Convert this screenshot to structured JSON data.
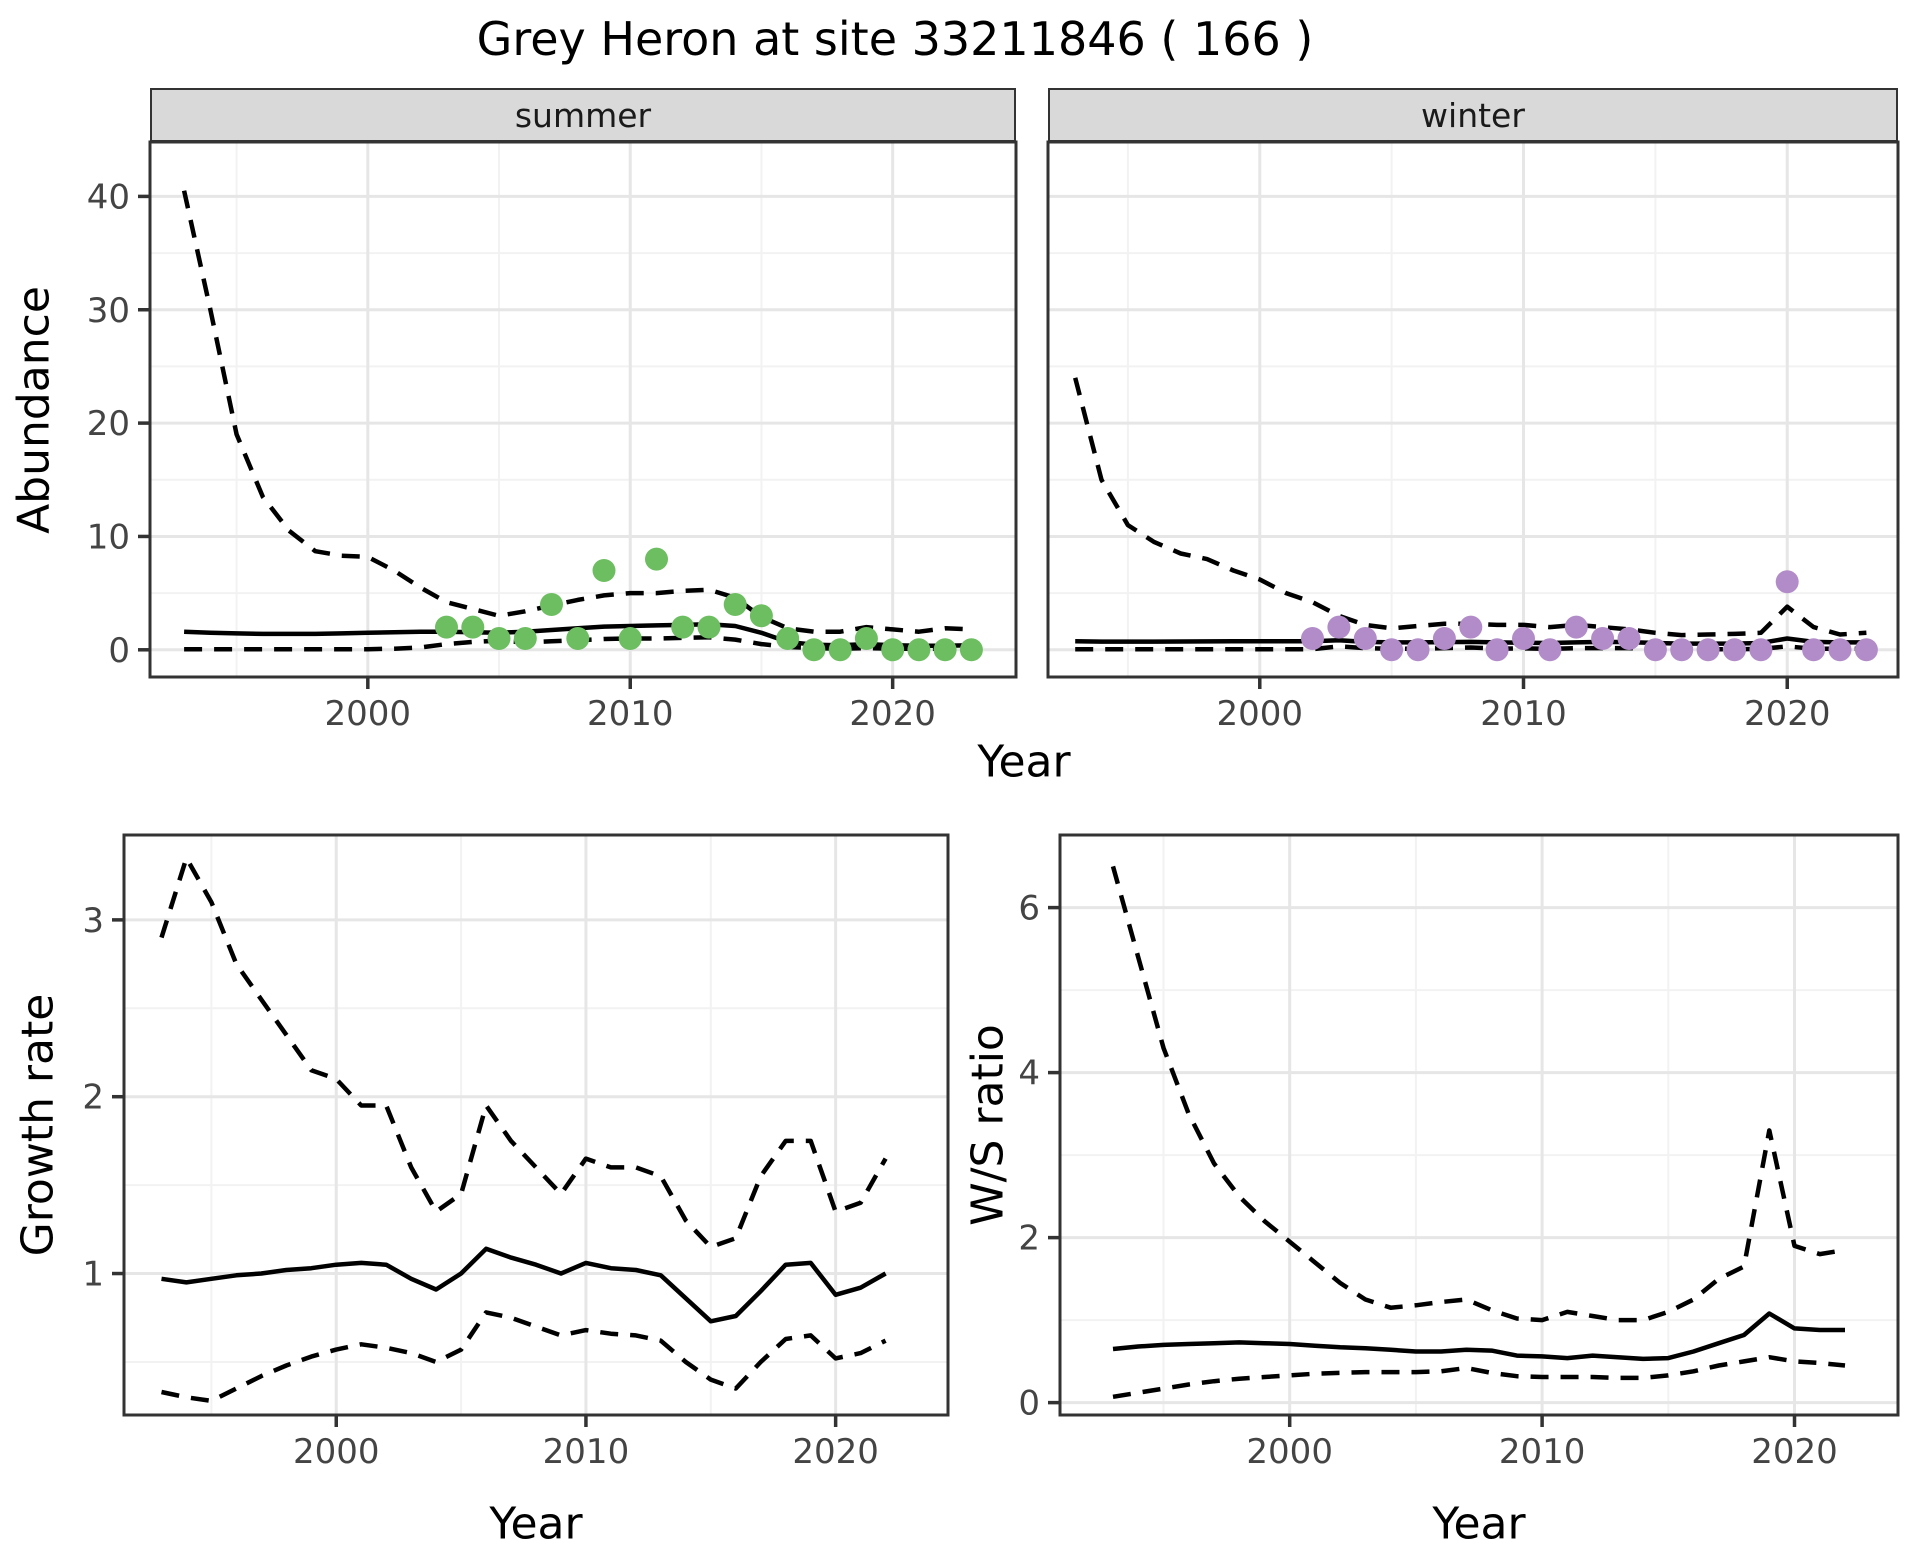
{
  "title": "Grey Heron at site 33211846 ( 166 )",
  "top_row": {
    "facets": [
      {
        "label": "summer"
      },
      {
        "label": "winter"
      }
    ],
    "y_title": "Abundance",
    "x_title": "Year"
  },
  "bottom_row": {
    "left_y_title": "Growth rate",
    "left_x_title": "Year",
    "right_y_title": "W/S ratio",
    "right_x_title": "Year"
  },
  "colors": {
    "summer_points": "#6CBE60",
    "winter_points": "#B28CC8",
    "line": "#000000",
    "grid_major": "#E6E6E6",
    "grid_minor": "#F2F2F2",
    "strip_bg": "#D9D9D9",
    "panel_border": "#333333",
    "tick_text": "#444444"
  },
  "chart_data": [
    {
      "id": "abundance-summer",
      "type": "line",
      "facet": "summer",
      "xlabel": "Year",
      "ylabel": "Abundance",
      "xlim": [
        1991.7,
        2024.7
      ],
      "ylim": [
        -2.4,
        44.8
      ],
      "x_ticks": [
        2000,
        2010,
        2020
      ],
      "y_ticks": [
        0,
        10,
        20,
        30,
        40
      ],
      "x_minor": [
        1995,
        2005,
        2015
      ],
      "y_minor": [
        5,
        15,
        25,
        35
      ],
      "grid": true,
      "years": [
        1993,
        1994,
        1995,
        1996,
        1997,
        1998,
        1999,
        2000,
        2001,
        2002,
        2003,
        2004,
        2005,
        2006,
        2007,
        2008,
        2009,
        2010,
        2011,
        2012,
        2013,
        2014,
        2015,
        2016,
        2017,
        2018,
        2019,
        2020,
        2021,
        2022,
        2023
      ],
      "series": [
        {
          "name": "fit",
          "style": "solid",
          "values": [
            1.6,
            1.5,
            1.45,
            1.4,
            1.4,
            1.4,
            1.45,
            1.5,
            1.55,
            1.6,
            1.6,
            1.55,
            1.5,
            1.6,
            1.75,
            1.9,
            2.05,
            2.1,
            2.15,
            2.2,
            2.25,
            2.1,
            1.5,
            0.7,
            0.45,
            0.4,
            0.5,
            0.4,
            0.35,
            0.35,
            0.4
          ]
        },
        {
          "name": "upper_ci",
          "style": "dashed",
          "values": [
            40.5,
            30,
            19,
            13.5,
            10.5,
            8.7,
            8.3,
            8.2,
            7.0,
            5.5,
            4.2,
            3.6,
            3.0,
            3.4,
            3.9,
            4.4,
            4.8,
            5.0,
            5.0,
            5.2,
            5.3,
            4.6,
            2.9,
            1.9,
            1.6,
            1.6,
            2.0,
            1.8,
            1.6,
            1.9,
            1.8
          ]
        },
        {
          "name": "lower_ci",
          "style": "dashed",
          "values": [
            0.05,
            0.05,
            0.05,
            0.05,
            0.05,
            0.05,
            0.05,
            0.05,
            0.1,
            0.2,
            0.5,
            0.7,
            0.8,
            0.65,
            0.75,
            0.85,
            0.95,
            1.0,
            1.0,
            1.05,
            1.1,
            0.9,
            0.5,
            0.25,
            0.15,
            0.1,
            0.15,
            0.1,
            0.1,
            0.1,
            0.1
          ]
        }
      ],
      "points": {
        "color_key": "summer_points",
        "years": [
          2003,
          2004,
          2005,
          2006,
          2007,
          2008,
          2009,
          2010,
          2011,
          2012,
          2013,
          2014,
          2015,
          2016,
          2017,
          2018,
          2019,
          2020,
          2021,
          2022,
          2023
        ],
        "values": [
          2,
          2,
          1,
          1,
          4,
          1,
          7,
          1,
          8,
          2,
          2,
          4,
          3,
          1,
          0,
          0,
          1,
          0,
          0,
          0,
          0
        ]
      }
    },
    {
      "id": "abundance-winter",
      "type": "line",
      "facet": "winter",
      "xlabel": "Year",
      "ylabel": "Abundance",
      "xlim": [
        1991.97,
        2024.2
      ],
      "ylim": [
        -2.4,
        44.8
      ],
      "x_ticks": [
        2000,
        2010,
        2020
      ],
      "y_ticks": [
        0,
        10,
        20,
        30,
        40
      ],
      "x_minor": [
        1995,
        2005,
        2015
      ],
      "y_minor": [
        5,
        15,
        25,
        35
      ],
      "grid": true,
      "years": [
        1993,
        1994,
        1995,
        1996,
        1997,
        1998,
        1999,
        2000,
        2001,
        2002,
        2003,
        2004,
        2005,
        2006,
        2007,
        2008,
        2009,
        2010,
        2011,
        2012,
        2013,
        2014,
        2015,
        2016,
        2017,
        2018,
        2019,
        2020,
        2021,
        2022,
        2023
      ],
      "series": [
        {
          "name": "fit",
          "style": "solid",
          "values": [
            0.75,
            0.72,
            0.72,
            0.72,
            0.73,
            0.74,
            0.75,
            0.76,
            0.76,
            0.75,
            0.85,
            0.7,
            0.65,
            0.65,
            0.68,
            0.7,
            0.65,
            0.63,
            0.6,
            0.65,
            0.7,
            0.68,
            0.6,
            0.55,
            0.55,
            0.55,
            0.6,
            1.0,
            0.7,
            0.65,
            0.65
          ]
        },
        {
          "name": "upper_ci",
          "style": "dashed",
          "values": [
            24,
            15,
            11,
            9.5,
            8.5,
            8,
            7,
            6.2,
            5,
            4.2,
            3.0,
            2.2,
            1.9,
            2.1,
            2.3,
            2.3,
            2.2,
            2.2,
            2.0,
            2.2,
            2.0,
            1.8,
            1.5,
            1.3,
            1.35,
            1.4,
            1.5,
            3.8,
            2.0,
            1.35,
            1.5
          ]
        },
        {
          "name": "lower_ci",
          "style": "dashed",
          "values": [
            0.05,
            0.05,
            0.05,
            0.05,
            0.05,
            0.05,
            0.05,
            0.05,
            0.05,
            0.05,
            0.3,
            0.15,
            0.1,
            0.1,
            0.15,
            0.2,
            0.1,
            0.12,
            0.08,
            0.15,
            0.15,
            0.15,
            0.05,
            0.05,
            0.05,
            0.05,
            0.08,
            0.3,
            0.1,
            0.1,
            0.1
          ]
        }
      ],
      "points": {
        "color_key": "winter_points",
        "years": [
          2002,
          2003,
          2004,
          2005,
          2006,
          2007,
          2008,
          2009,
          2010,
          2011,
          2012,
          2013,
          2014,
          2015,
          2016,
          2017,
          2018,
          2019,
          2020,
          2021,
          2022,
          2023
        ],
        "values": [
          1,
          2,
          1,
          0,
          0,
          1,
          2,
          0,
          1,
          0,
          2,
          1,
          1,
          0,
          0,
          0,
          0,
          0,
          6,
          0,
          0,
          0
        ]
      }
    },
    {
      "id": "growth-rate",
      "type": "line",
      "facet": "",
      "xlabel": "Year",
      "ylabel": "Growth rate",
      "xlim": [
        1991.5,
        2024.5
      ],
      "ylim": [
        0.2,
        3.48
      ],
      "x_ticks": [
        2000,
        2010,
        2020
      ],
      "y_ticks": [
        1,
        2,
        3
      ],
      "x_minor": [
        1995,
        2005,
        2015
      ],
      "y_minor": [
        0.5,
        1.5,
        2.5
      ],
      "grid": true,
      "years": [
        1993,
        1994,
        1995,
        1996,
        1997,
        1998,
        1999,
        2000,
        2001,
        2002,
        2003,
        2004,
        2005,
        2006,
        2007,
        2008,
        2009,
        2010,
        2011,
        2012,
        2013,
        2014,
        2015,
        2016,
        2017,
        2018,
        2019,
        2020,
        2021,
        2022
      ],
      "series": [
        {
          "name": "fit",
          "style": "solid",
          "values": [
            0.97,
            0.95,
            0.97,
            0.99,
            1.0,
            1.02,
            1.03,
            1.05,
            1.06,
            1.05,
            0.97,
            0.91,
            1.0,
            1.14,
            1.09,
            1.05,
            1.0,
            1.06,
            1.03,
            1.02,
            0.99,
            0.86,
            0.73,
            0.76,
            0.9,
            1.05,
            1.06,
            0.88,
            0.92,
            1.0
          ]
        },
        {
          "name": "upper_ci",
          "style": "dashed",
          "values": [
            2.9,
            3.35,
            3.1,
            2.75,
            2.55,
            2.35,
            2.15,
            2.1,
            1.95,
            1.95,
            1.6,
            1.35,
            1.45,
            1.95,
            1.75,
            1.6,
            1.45,
            1.65,
            1.6,
            1.6,
            1.55,
            1.3,
            1.15,
            1.2,
            1.55,
            1.75,
            1.75,
            1.35,
            1.4,
            1.65
          ]
        },
        {
          "name": "lower_ci",
          "style": "dashed",
          "values": [
            0.33,
            0.3,
            0.28,
            0.35,
            0.42,
            0.48,
            0.53,
            0.57,
            0.6,
            0.58,
            0.55,
            0.5,
            0.57,
            0.78,
            0.75,
            0.7,
            0.65,
            0.68,
            0.66,
            0.65,
            0.62,
            0.5,
            0.4,
            0.35,
            0.5,
            0.63,
            0.65,
            0.52,
            0.55,
            0.62
          ]
        }
      ],
      "points": null
    },
    {
      "id": "ws-ratio",
      "type": "line",
      "facet": "",
      "xlabel": "Year",
      "ylabel": "W/S ratio",
      "xlim": [
        1990.9,
        2024.1
      ],
      "ylim": [
        -0.15,
        6.88
      ],
      "x_ticks": [
        2000,
        2010,
        2020
      ],
      "y_ticks": [
        0,
        2,
        4,
        6
      ],
      "x_minor": [
        1995,
        2005,
        2015
      ],
      "y_minor": [
        1,
        3,
        5
      ],
      "grid": true,
      "years": [
        1993,
        1994,
        1995,
        1996,
        1997,
        1998,
        1999,
        2000,
        2001,
        2002,
        2003,
        2004,
        2005,
        2006,
        2007,
        2008,
        2009,
        2010,
        2011,
        2012,
        2013,
        2014,
        2015,
        2016,
        2017,
        2018,
        2019,
        2020,
        2021,
        2022
      ],
      "series": [
        {
          "name": "fit",
          "style": "solid",
          "values": [
            0.65,
            0.68,
            0.7,
            0.71,
            0.72,
            0.73,
            0.72,
            0.71,
            0.69,
            0.67,
            0.66,
            0.64,
            0.62,
            0.62,
            0.64,
            0.63,
            0.57,
            0.56,
            0.54,
            0.57,
            0.55,
            0.53,
            0.54,
            0.62,
            0.72,
            0.82,
            1.08,
            0.9,
            0.88,
            0.88
          ]
        },
        {
          "name": "upper_ci",
          "style": "dashed",
          "values": [
            6.5,
            5.4,
            4.3,
            3.5,
            2.9,
            2.5,
            2.2,
            1.95,
            1.7,
            1.45,
            1.25,
            1.15,
            1.18,
            1.22,
            1.25,
            1.12,
            1.02,
            1.0,
            1.1,
            1.05,
            1.0,
            1.0,
            1.1,
            1.25,
            1.5,
            1.65,
            3.3,
            1.9,
            1.8,
            1.85
          ]
        },
        {
          "name": "lower_ci",
          "style": "dashed",
          "values": [
            0.07,
            0.12,
            0.17,
            0.22,
            0.26,
            0.29,
            0.31,
            0.33,
            0.35,
            0.36,
            0.37,
            0.37,
            0.37,
            0.38,
            0.42,
            0.36,
            0.32,
            0.31,
            0.31,
            0.31,
            0.3,
            0.3,
            0.33,
            0.38,
            0.45,
            0.5,
            0.55,
            0.5,
            0.48,
            0.45
          ]
        }
      ],
      "points": null
    }
  ]
}
